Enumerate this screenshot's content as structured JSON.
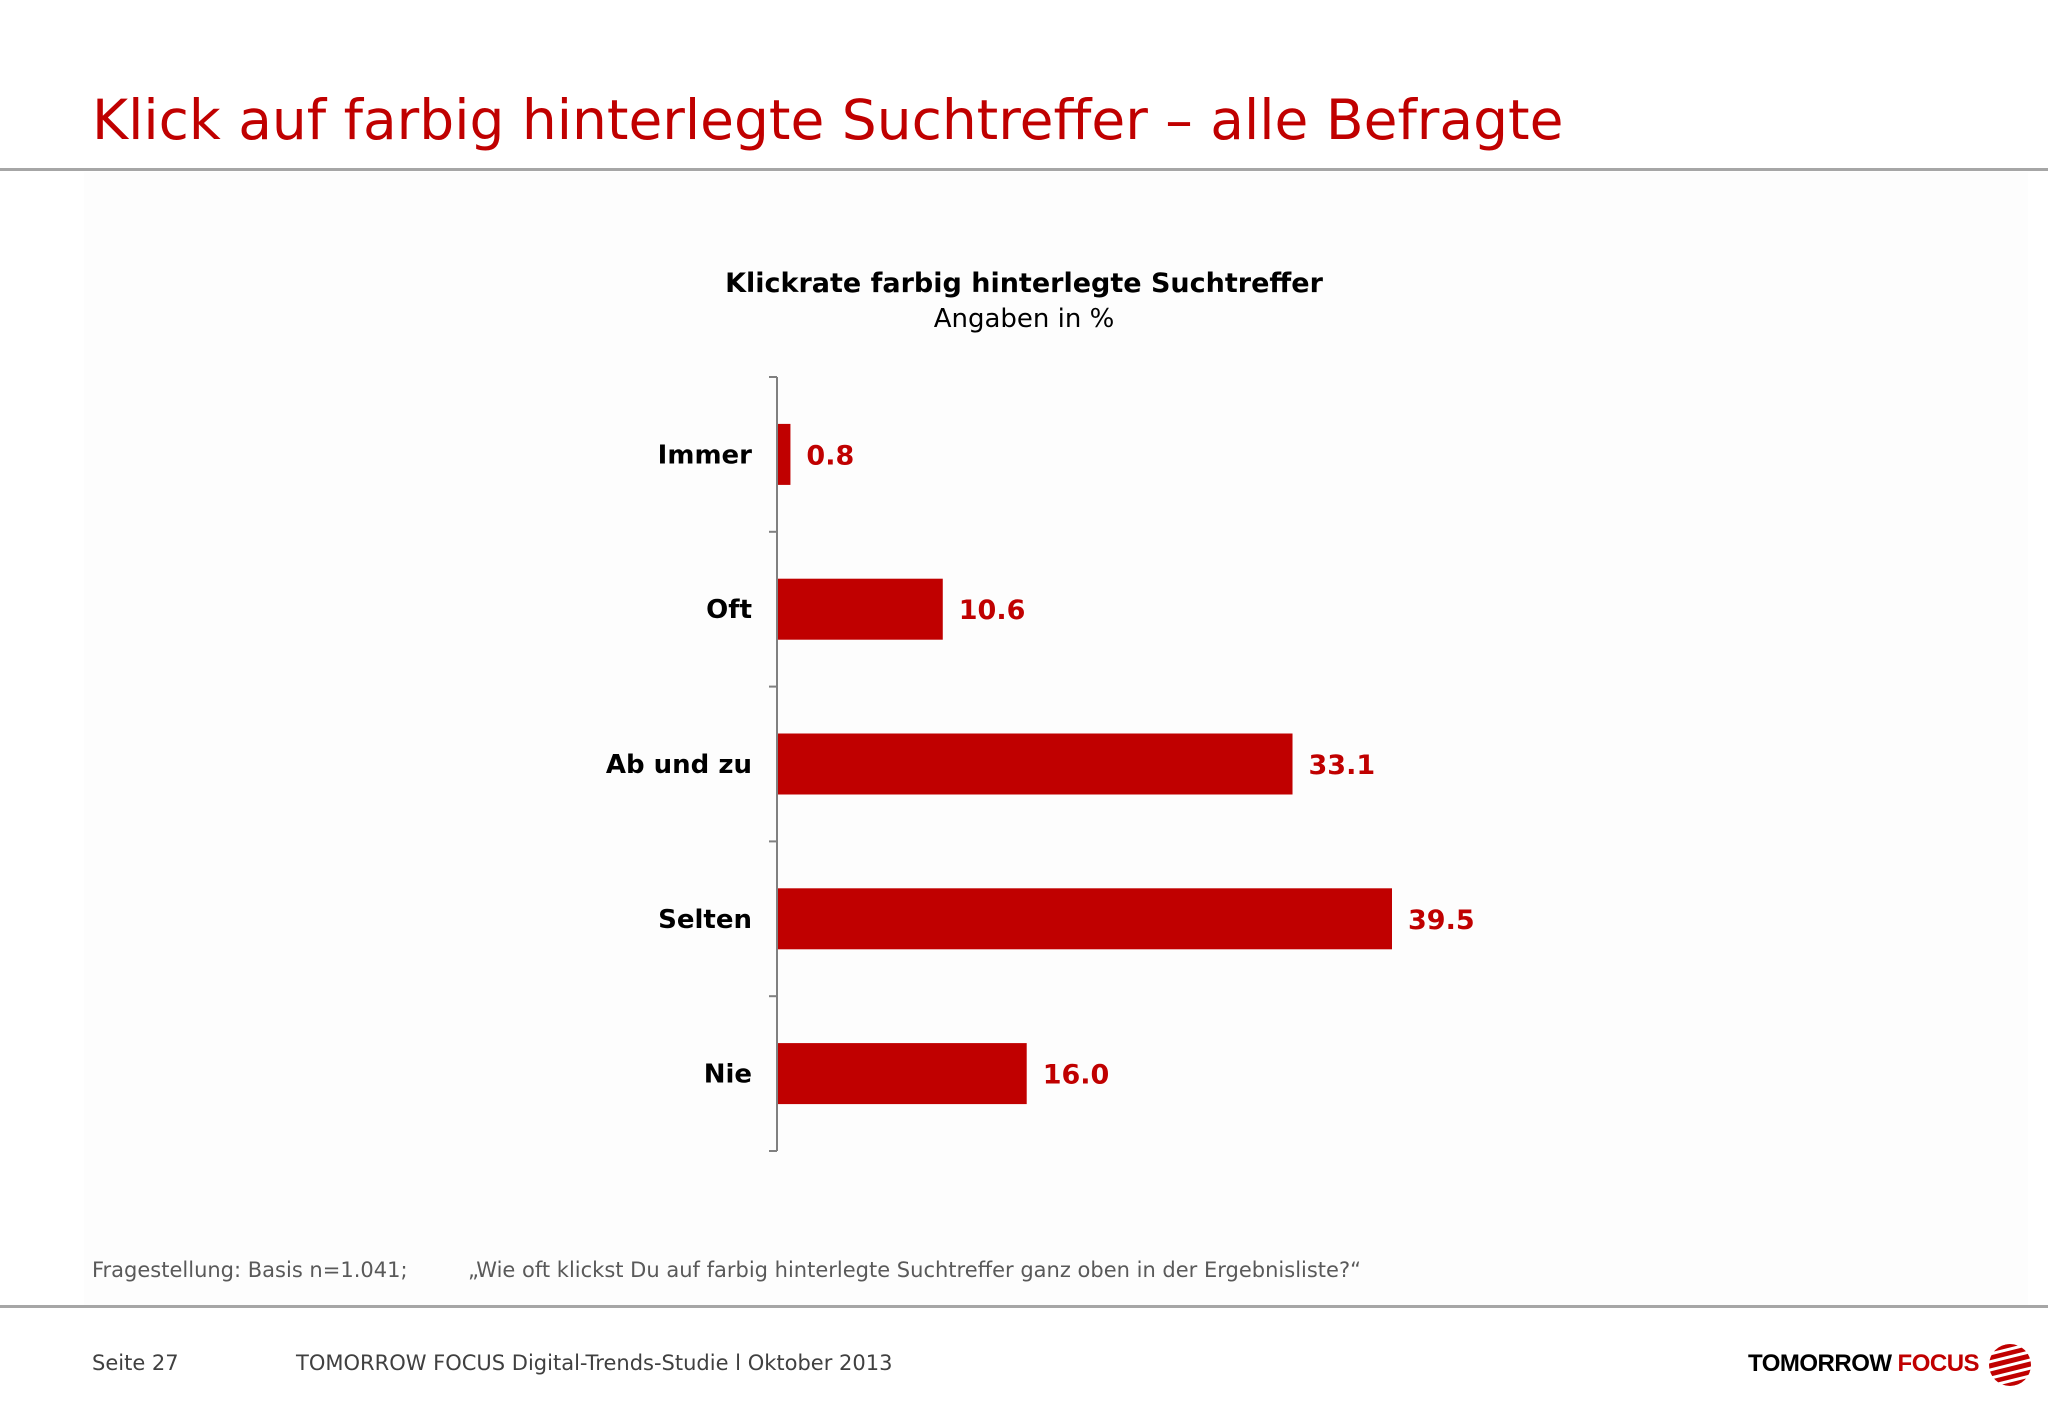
{
  "title": "Klick auf farbig hinterlegte Suchtreffer – alle Befragte",
  "accent_color": "#c00000",
  "chart_data": {
    "type": "bar",
    "orientation": "horizontal",
    "title": "Klickrate farbig hinterlegte Suchtreffer",
    "subtitle": "Angaben in %",
    "categories": [
      "Immer",
      "Oft",
      "Ab und zu",
      "Selten",
      "Nie"
    ],
    "values": [
      0.8,
      10.6,
      33.1,
      39.5,
      16.0
    ],
    "value_labels": [
      "0.8",
      "10.6",
      "33.1",
      "39.5",
      "16.0"
    ],
    "xlim": [
      0,
      39.5
    ],
    "bar_color": "#c00000",
    "grid": false,
    "legend": "none"
  },
  "footnote": {
    "basis": "Fragestellung: Basis n=1.041;",
    "question": "„Wie oft klickst Du auf farbig hinterlegte Suchtreffer ganz oben in der Ergebnisliste?“"
  },
  "footer": {
    "page": "Seite 27",
    "study": "TOMORROW FOCUS Digital-Trends-Studie l Oktober 2013",
    "logo_word_1": "TOMORROW",
    "logo_word_2": "FOCUS",
    "logo_icon": "striped-sphere-icon"
  }
}
